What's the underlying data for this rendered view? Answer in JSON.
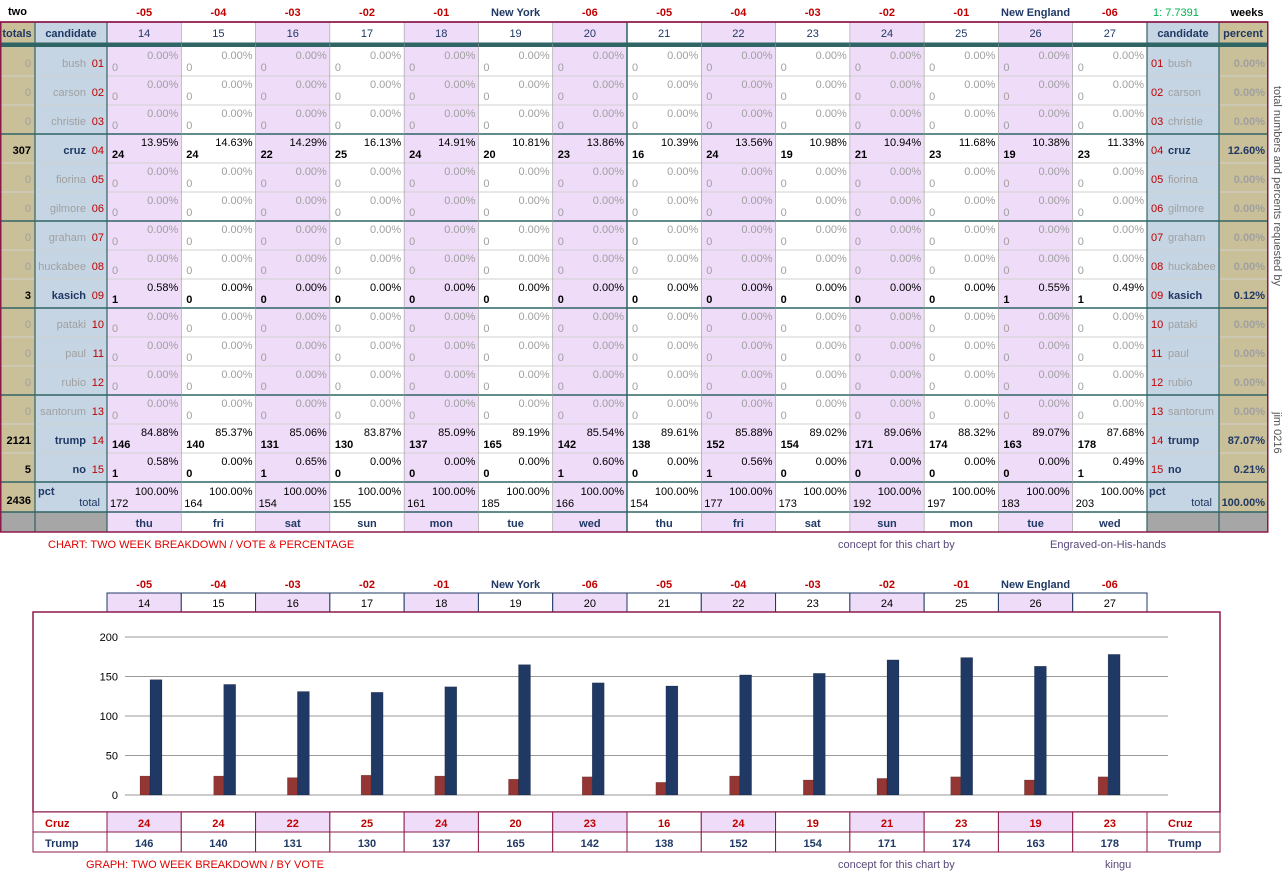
{
  "header": {
    "corner": "two",
    "day_labels": [
      "-05",
      "-04",
      "-03",
      "-02",
      "-01",
      "New York",
      "-06",
      "-05",
      "-04",
      "-03",
      "-02",
      "-01",
      "New England",
      "-06"
    ],
    "ratio": "1: 7.7391",
    "weeks": "weeks"
  },
  "columns": {
    "totals": "totals",
    "candidate": "candidate",
    "days": [
      14,
      15,
      16,
      17,
      18,
      19,
      20,
      21,
      22,
      23,
      24,
      25,
      26,
      27
    ],
    "candidate_right": "candidate",
    "percent": "percent"
  },
  "rows": [
    {
      "total": 0,
      "name": "bush",
      "code": "01",
      "counts": [
        0,
        0,
        0,
        0,
        0,
        0,
        0,
        0,
        0,
        0,
        0,
        0,
        0,
        0
      ],
      "pcts": [
        "0.00%",
        "0.00%",
        "0.00%",
        "0.00%",
        "0.00%",
        "0.00%",
        "0.00%",
        "0.00%",
        "0.00%",
        "0.00%",
        "0.00%",
        "0.00%",
        "0.00%",
        "0.00%"
      ],
      "percent": "0.00%"
    },
    {
      "total": 0,
      "name": "carson",
      "code": "02",
      "counts": [
        0,
        0,
        0,
        0,
        0,
        0,
        0,
        0,
        0,
        0,
        0,
        0,
        0,
        0
      ],
      "pcts": [
        "0.00%",
        "0.00%",
        "0.00%",
        "0.00%",
        "0.00%",
        "0.00%",
        "0.00%",
        "0.00%",
        "0.00%",
        "0.00%",
        "0.00%",
        "0.00%",
        "0.00%",
        "0.00%"
      ],
      "percent": "0.00%"
    },
    {
      "total": 0,
      "name": "christie",
      "code": "03",
      "counts": [
        0,
        0,
        0,
        0,
        0,
        0,
        0,
        0,
        0,
        0,
        0,
        0,
        0,
        0
      ],
      "pcts": [
        "0.00%",
        "0.00%",
        "0.00%",
        "0.00%",
        "0.00%",
        "0.00%",
        "0.00%",
        "0.00%",
        "0.00%",
        "0.00%",
        "0.00%",
        "0.00%",
        "0.00%",
        "0.00%"
      ],
      "percent": "0.00%"
    },
    {
      "total": 307,
      "name": "cruz",
      "code": "04",
      "counts": [
        24,
        24,
        22,
        25,
        24,
        20,
        23,
        16,
        24,
        19,
        21,
        23,
        19,
        23
      ],
      "pcts": [
        "13.95%",
        "14.63%",
        "14.29%",
        "16.13%",
        "14.91%",
        "10.81%",
        "13.86%",
        "10.39%",
        "13.56%",
        "10.98%",
        "10.94%",
        "11.68%",
        "10.38%",
        "11.33%"
      ],
      "percent": "12.60%"
    },
    {
      "total": 0,
      "name": "fiorina",
      "code": "05",
      "counts": [
        0,
        0,
        0,
        0,
        0,
        0,
        0,
        0,
        0,
        0,
        0,
        0,
        0,
        0
      ],
      "pcts": [
        "0.00%",
        "0.00%",
        "0.00%",
        "0.00%",
        "0.00%",
        "0.00%",
        "0.00%",
        "0.00%",
        "0.00%",
        "0.00%",
        "0.00%",
        "0.00%",
        "0.00%",
        "0.00%"
      ],
      "percent": "0.00%"
    },
    {
      "total": 0,
      "name": "gilmore",
      "code": "06",
      "counts": [
        0,
        0,
        0,
        0,
        0,
        0,
        0,
        0,
        0,
        0,
        0,
        0,
        0,
        0
      ],
      "pcts": [
        "0.00%",
        "0.00%",
        "0.00%",
        "0.00%",
        "0.00%",
        "0.00%",
        "0.00%",
        "0.00%",
        "0.00%",
        "0.00%",
        "0.00%",
        "0.00%",
        "0.00%",
        "0.00%"
      ],
      "percent": "0.00%"
    },
    {
      "total": 0,
      "name": "graham",
      "code": "07",
      "counts": [
        0,
        0,
        0,
        0,
        0,
        0,
        0,
        0,
        0,
        0,
        0,
        0,
        0,
        0
      ],
      "pcts": [
        "0.00%",
        "0.00%",
        "0.00%",
        "0.00%",
        "0.00%",
        "0.00%",
        "0.00%",
        "0.00%",
        "0.00%",
        "0.00%",
        "0.00%",
        "0.00%",
        "0.00%",
        "0.00%"
      ],
      "percent": "0.00%"
    },
    {
      "total": 0,
      "name": "huckabee",
      "code": "08",
      "counts": [
        0,
        0,
        0,
        0,
        0,
        0,
        0,
        0,
        0,
        0,
        0,
        0,
        0,
        0
      ],
      "pcts": [
        "0.00%",
        "0.00%",
        "0.00%",
        "0.00%",
        "0.00%",
        "0.00%",
        "0.00%",
        "0.00%",
        "0.00%",
        "0.00%",
        "0.00%",
        "0.00%",
        "0.00%",
        "0.00%"
      ],
      "percent": "0.00%"
    },
    {
      "total": 3,
      "name": "kasich",
      "code": "09",
      "counts": [
        1,
        0,
        0,
        0,
        0,
        0,
        0,
        0,
        0,
        0,
        0,
        0,
        1,
        1
      ],
      "pcts": [
        "0.58%",
        "0.00%",
        "0.00%",
        "0.00%",
        "0.00%",
        "0.00%",
        "0.00%",
        "0.00%",
        "0.00%",
        "0.00%",
        "0.00%",
        "0.00%",
        "0.55%",
        "0.49%"
      ],
      "percent": "0.12%"
    },
    {
      "total": 0,
      "name": "pataki",
      "code": "10",
      "counts": [
        0,
        0,
        0,
        0,
        0,
        0,
        0,
        0,
        0,
        0,
        0,
        0,
        0,
        0
      ],
      "pcts": [
        "0.00%",
        "0.00%",
        "0.00%",
        "0.00%",
        "0.00%",
        "0.00%",
        "0.00%",
        "0.00%",
        "0.00%",
        "0.00%",
        "0.00%",
        "0.00%",
        "0.00%",
        "0.00%"
      ],
      "percent": "0.00%"
    },
    {
      "total": 0,
      "name": "paul",
      "code": "11",
      "counts": [
        0,
        0,
        0,
        0,
        0,
        0,
        0,
        0,
        0,
        0,
        0,
        0,
        0,
        0
      ],
      "pcts": [
        "0.00%",
        "0.00%",
        "0.00%",
        "0.00%",
        "0.00%",
        "0.00%",
        "0.00%",
        "0.00%",
        "0.00%",
        "0.00%",
        "0.00%",
        "0.00%",
        "0.00%",
        "0.00%"
      ],
      "percent": "0.00%"
    },
    {
      "total": 0,
      "name": "rubio",
      "code": "12",
      "counts": [
        0,
        0,
        0,
        0,
        0,
        0,
        0,
        0,
        0,
        0,
        0,
        0,
        0,
        0
      ],
      "pcts": [
        "0.00%",
        "0.00%",
        "0.00%",
        "0.00%",
        "0.00%",
        "0.00%",
        "0.00%",
        "0.00%",
        "0.00%",
        "0.00%",
        "0.00%",
        "0.00%",
        "0.00%",
        "0.00%"
      ],
      "percent": "0.00%"
    },
    {
      "total": 0,
      "name": "santorum",
      "code": "13",
      "counts": [
        0,
        0,
        0,
        0,
        0,
        0,
        0,
        0,
        0,
        0,
        0,
        0,
        0,
        0
      ],
      "pcts": [
        "0.00%",
        "0.00%",
        "0.00%",
        "0.00%",
        "0.00%",
        "0.00%",
        "0.00%",
        "0.00%",
        "0.00%",
        "0.00%",
        "0.00%",
        "0.00%",
        "0.00%",
        "0.00%"
      ],
      "percent": "0.00%"
    },
    {
      "total": 2121,
      "name": "trump",
      "code": "14",
      "counts": [
        146,
        140,
        131,
        130,
        137,
        165,
        142,
        138,
        152,
        154,
        171,
        174,
        163,
        178
      ],
      "pcts": [
        "84.88%",
        "85.37%",
        "85.06%",
        "83.87%",
        "85.09%",
        "89.19%",
        "85.54%",
        "89.61%",
        "85.88%",
        "89.02%",
        "89.06%",
        "88.32%",
        "89.07%",
        "87.68%"
      ],
      "percent": "87.07%"
    },
    {
      "total": 5,
      "name": "no",
      "code": "15",
      "counts": [
        1,
        0,
        1,
        0,
        0,
        0,
        1,
        0,
        1,
        0,
        0,
        0,
        0,
        1
      ],
      "pcts": [
        "0.58%",
        "0.00%",
        "0.65%",
        "0.00%",
        "0.00%",
        "0.00%",
        "0.60%",
        "0.00%",
        "0.56%",
        "0.00%",
        "0.00%",
        "0.00%",
        "0.00%",
        "0.49%"
      ],
      "percent": "0.21%"
    }
  ],
  "total_row": {
    "total": 2436,
    "pct_label": "pct",
    "label": "total",
    "counts": [
      172,
      164,
      154,
      155,
      161,
      185,
      166,
      154,
      177,
      173,
      192,
      197,
      183,
      203
    ],
    "pcts": [
      "100.00%",
      "100.00%",
      "100.00%",
      "100.00%",
      "100.00%",
      "100.00%",
      "100.00%",
      "100.00%",
      "100.00%",
      "100.00%",
      "100.00%",
      "100.00%",
      "100.00%",
      "100.00%"
    ],
    "pct_label_right": "pct",
    "label_right": "total",
    "percent": "100.00%"
  },
  "weekdays": [
    "thu",
    "fri",
    "sat",
    "sun",
    "mon",
    "tue",
    "wed",
    "thu",
    "fri",
    "sat",
    "sun",
    "mon",
    "tue",
    "wed"
  ],
  "footer": {
    "caption": "CHART: TWO WEEK BREAKDOWN / VOTE & PERCENTAGE",
    "concept": "concept for this chart by",
    "author": "Engraved-on-His-hands"
  },
  "side_note": {
    "request": "total numbers and percents requested by",
    "signature": "jim 0216"
  },
  "chart_data": {
    "type": "bar",
    "categories": [
      14,
      15,
      16,
      17,
      18,
      19,
      20,
      21,
      22,
      23,
      24,
      25,
      26,
      27
    ],
    "series": [
      {
        "name": "Cruz",
        "color": "#943634",
        "values": [
          24,
          24,
          22,
          25,
          24,
          20,
          23,
          16,
          24,
          19,
          21,
          23,
          19,
          23
        ]
      },
      {
        "name": "Trump",
        "color": "#1f3864",
        "values": [
          146,
          140,
          131,
          130,
          137,
          165,
          142,
          138,
          152,
          154,
          171,
          174,
          163,
          178
        ]
      }
    ],
    "ylim": [
      0,
      200
    ],
    "yticks": [
      0,
      50,
      100,
      150,
      200
    ],
    "grid": true
  },
  "chart_footer": {
    "caption": "GRAPH: TWO WEEK BREAKDOWN / BY VOTE",
    "concept": "concept for this chart by",
    "author": "kingu"
  }
}
